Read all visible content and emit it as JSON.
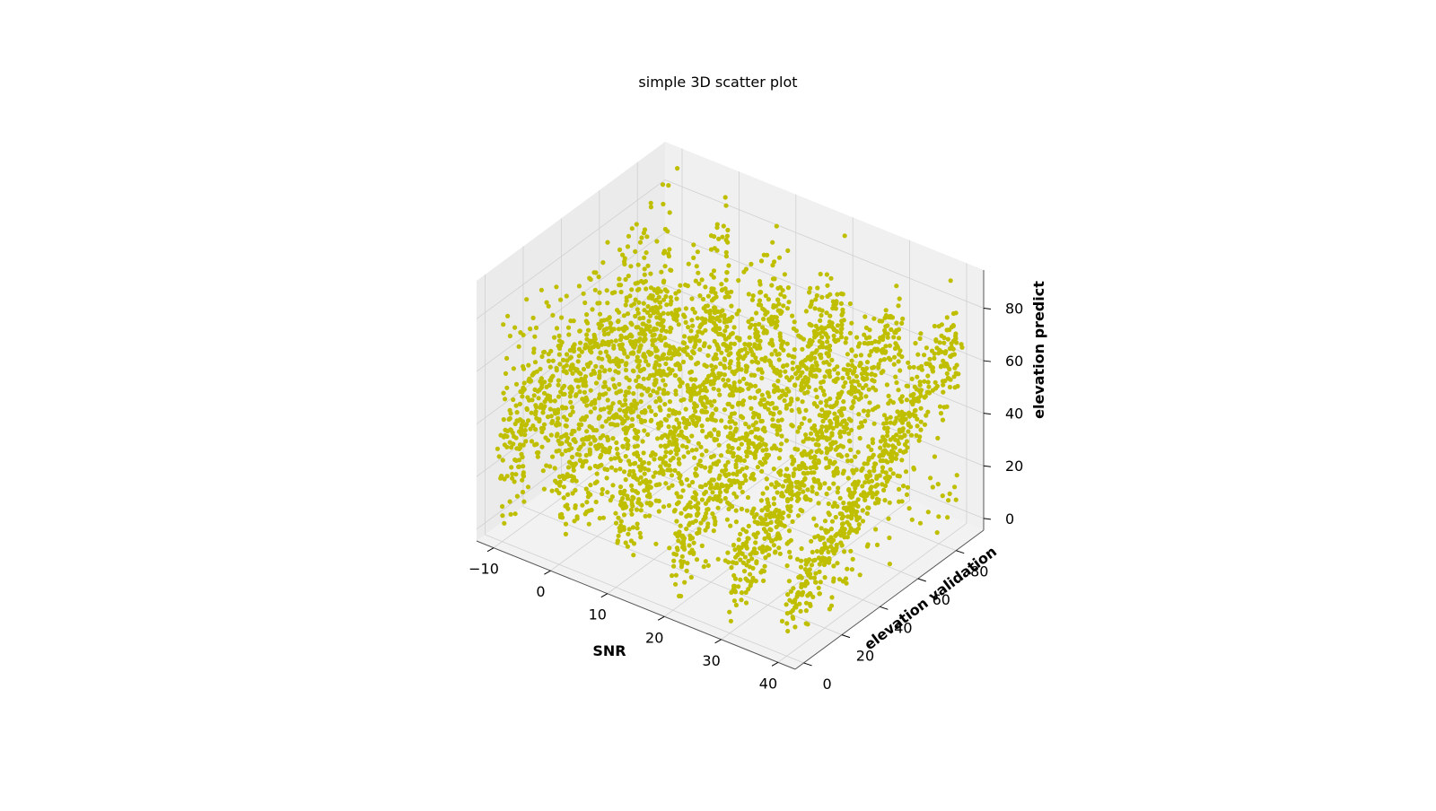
{
  "chart_data": {
    "type": "scatter",
    "projection": "3d",
    "title": "simple 3D scatter plot",
    "xlabel": "SNR",
    "ylabel": "elevation validation",
    "zlabel": "elevation predict",
    "xlim": [
      -13,
      43
    ],
    "ylim": [
      -4.5,
      94.5
    ],
    "zlim": [
      -4.5,
      94.5
    ],
    "xticks": [
      -10,
      0,
      10,
      20,
      30,
      40
    ],
    "xtick_labels": [
      "−10",
      "0",
      "10",
      "20",
      "30",
      "40"
    ],
    "yticks": [
      0,
      20,
      40,
      60,
      80
    ],
    "ytick_labels": [
      "0",
      "20",
      "40",
      "60",
      "80"
    ],
    "zticks": [
      0,
      20,
      40,
      60,
      80
    ],
    "ztick_labels": [
      "0",
      "20",
      "40",
      "60",
      "80"
    ],
    "grid": true,
    "marker_color": "#bfbf00",
    "snr_levels": [
      -10,
      0,
      10,
      20,
      30,
      40
    ],
    "elevation_validation_range": [
      0,
      90
    ],
    "elevation_predict_range": [
      0,
      90
    ],
    "point_density": "dense (many thousands of points)"
  }
}
